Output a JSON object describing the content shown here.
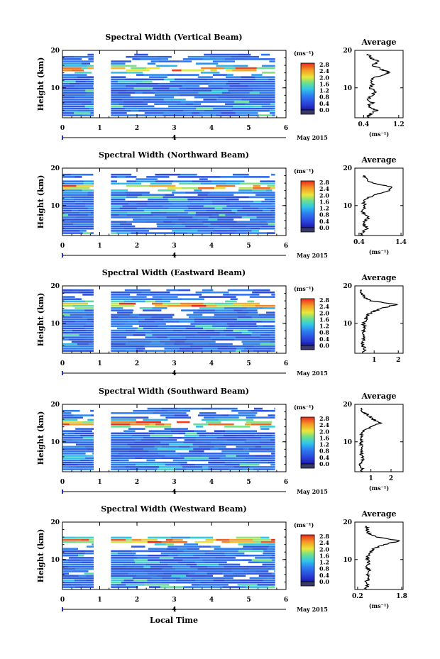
{
  "figure": {
    "xlabel": "Local Time",
    "date_label": "May 2015",
    "day_label": "4",
    "profile_title": "Average",
    "units": "(ms⁻¹)",
    "ylabel": "Height (km)"
  },
  "chart_data": [
    {
      "type": "heatmap",
      "title": "Spectral Width (Vertical Beam)",
      "xlabel": "Local Time",
      "ylabel": "Height (km)",
      "xlim": [
        0,
        6
      ],
      "ylim": [
        2,
        20
      ],
      "xticks": [
        0,
        1,
        2,
        3,
        4,
        5,
        6
      ],
      "yticks": [
        10,
        20
      ],
      "data_gap": [
        0.83,
        1.3
      ],
      "data_end": 5.7,
      "data_top_km": 19,
      "colorbar": {
        "label": "(ms⁻¹)",
        "ticks": [
          "0.0",
          "0.4",
          "0.8",
          "1.2",
          "1.6",
          "2.0",
          "2.4",
          "2.8"
        ]
      },
      "profile": {
        "title": "Average",
        "xlabel": "(ms⁻¹)",
        "xticks": [
          0.4,
          1.2
        ],
        "xlim": [
          0.2,
          1.3
        ],
        "yticks": [
          10,
          20
        ],
        "height": [
          2,
          3,
          4,
          5,
          6,
          7,
          8,
          9,
          10,
          11,
          12,
          13,
          14,
          15,
          16,
          17,
          18,
          19
        ],
        "values": [
          0.5,
          0.55,
          0.7,
          0.5,
          0.6,
          0.5,
          0.6,
          0.65,
          0.55,
          0.6,
          0.55,
          0.7,
          1.0,
          0.8,
          0.6,
          0.75,
          0.55,
          0.5
        ]
      }
    },
    {
      "type": "heatmap",
      "title": "Spectral Width (Northward Beam)",
      "xlabel": "Local Time",
      "ylabel": "Height (km)",
      "xlim": [
        0,
        6
      ],
      "ylim": [
        2,
        20
      ],
      "xticks": [
        0,
        1,
        2,
        3,
        4,
        5,
        6
      ],
      "yticks": [
        10,
        20
      ],
      "data_gap": [
        0.83,
        1.3
      ],
      "data_end": 5.7,
      "data_top_km": 18,
      "colorbar": {
        "label": "(ms⁻¹)",
        "ticks": [
          "0.0",
          "0.4",
          "0.8",
          "1.2",
          "1.6",
          "2.0",
          "2.4",
          "2.8"
        ]
      },
      "profile": {
        "title": "Average",
        "xlabel": "(ms⁻¹)",
        "xticks": [
          0.4,
          1.4
        ],
        "xlim": [
          0.3,
          1.45
        ],
        "yticks": [
          10,
          20
        ],
        "height": [
          2,
          3,
          4,
          5,
          6,
          7,
          8,
          9,
          10,
          11,
          12,
          13,
          14,
          15,
          16,
          17,
          18
        ],
        "values": [
          0.45,
          0.5,
          0.6,
          0.5,
          0.55,
          0.65,
          0.5,
          0.5,
          0.55,
          0.5,
          0.6,
          0.8,
          1.1,
          1.2,
          0.7,
          0.6,
          0.5
        ]
      }
    },
    {
      "type": "heatmap",
      "title": "Spectral Width (Eastward Beam)",
      "xlabel": "Local Time",
      "ylabel": "Height (km)",
      "xlim": [
        0,
        6
      ],
      "ylim": [
        2,
        20
      ],
      "xticks": [
        0,
        1,
        2,
        3,
        4,
        5,
        6
      ],
      "yticks": [
        10,
        20
      ],
      "data_gap": [
        0.83,
        1.3
      ],
      "data_end": 5.7,
      "data_top_km": 19,
      "colorbar": {
        "label": "(ms⁻¹)",
        "ticks": [
          "0.0",
          "0.4",
          "0.8",
          "1.2",
          "1.6",
          "2.0",
          "2.4",
          "2.8"
        ]
      },
      "profile": {
        "title": "Average",
        "xlabel": "",
        "xticks": [
          1,
          2
        ],
        "xlim": [
          0.2,
          2.2
        ],
        "yticks": [
          10,
          20
        ],
        "height": [
          2,
          3,
          4,
          5,
          6,
          7,
          8,
          9,
          10,
          11,
          12,
          13,
          14,
          15,
          16,
          17,
          18,
          19
        ],
        "values": [
          0.5,
          0.6,
          0.55,
          0.5,
          0.6,
          0.5,
          0.55,
          0.6,
          0.55,
          0.65,
          0.7,
          0.9,
          1.3,
          1.9,
          0.9,
          0.6,
          0.5,
          0.45
        ]
      }
    },
    {
      "type": "heatmap",
      "title": "Spectral Width (Southward Beam)",
      "xlabel": "Local Time",
      "ylabel": "Height (km)",
      "xlim": [
        0,
        6
      ],
      "ylim": [
        2,
        20
      ],
      "xticks": [
        0,
        1,
        2,
        3,
        4,
        5,
        6
      ],
      "yticks": [
        10,
        20
      ],
      "data_gap": [
        0.83,
        1.3
      ],
      "data_end": 5.7,
      "data_top_km": 19,
      "colorbar": {
        "label": "(ms⁻¹)",
        "ticks": [
          "0.0",
          "0.4",
          "0.8",
          "1.2",
          "1.6",
          "2.0",
          "2.4",
          "2.8"
        ]
      },
      "profile": {
        "title": "Average",
        "xlabel": "(ms⁻¹)",
        "xticks": [
          1,
          2
        ],
        "xlim": [
          0.2,
          2.6
        ],
        "yticks": [
          10,
          20
        ],
        "height": [
          2,
          3,
          4,
          5,
          6,
          7,
          8,
          9,
          10,
          11,
          12,
          13,
          14,
          15,
          16,
          17,
          18,
          19
        ],
        "values": [
          0.5,
          0.55,
          0.5,
          0.6,
          0.55,
          0.5,
          0.6,
          0.55,
          0.5,
          0.6,
          0.55,
          0.7,
          1.0,
          1.5,
          1.1,
          0.9,
          0.6,
          0.55
        ]
      }
    },
    {
      "type": "heatmap",
      "title": "Spectral Width (Westward Beam)",
      "xlabel": "Local Time",
      "ylabel": "Height (km)",
      "xlim": [
        0,
        6
      ],
      "ylim": [
        2,
        20
      ],
      "xticks": [
        0,
        1,
        2,
        3,
        4,
        5,
        6
      ],
      "yticks": [
        10,
        20
      ],
      "data_gap": [
        0.83,
        1.3
      ],
      "data_end": 5.7,
      "data_top_km": 16,
      "colorbar": {
        "label": "(ms⁻¹)",
        "ticks": [
          "0.0",
          "0.4",
          "0.8",
          "1.2",
          "1.6",
          "2.0",
          "2.4",
          "2.8"
        ]
      },
      "profile": {
        "title": "Average",
        "xlabel": "(ms⁻¹)",
        "xticks": [
          0.2,
          1.8
        ],
        "xlim": [
          0.1,
          1.85
        ],
        "yticks": [
          10,
          20
        ],
        "height": [
          2,
          3,
          4,
          5,
          6,
          7,
          8,
          9,
          10,
          11,
          12,
          13,
          14,
          15,
          16,
          17,
          18,
          19
        ],
        "values": [
          0.5,
          0.55,
          0.5,
          0.6,
          0.55,
          0.65,
          0.5,
          0.6,
          0.55,
          0.6,
          0.65,
          0.8,
          1.2,
          1.7,
          0.9,
          0.6,
          0.55,
          0.5
        ]
      }
    }
  ]
}
